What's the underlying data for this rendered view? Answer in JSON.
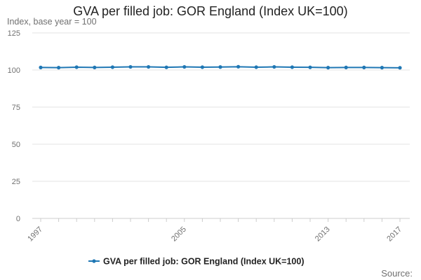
{
  "chart_data": {
    "type": "line",
    "title": "GVA per filled job: GOR England (Index UK=100)",
    "ylabel": "Index, base year = 100",
    "xlabel": "",
    "x": [
      1997,
      1998,
      1999,
      2000,
      2001,
      2002,
      2003,
      2004,
      2005,
      2006,
      2007,
      2008,
      2009,
      2010,
      2011,
      2012,
      2013,
      2014,
      2015,
      2016,
      2017
    ],
    "x_tick_labels": [
      "1997",
      "2005",
      "2013",
      "2017"
    ],
    "y_ticks": [
      0,
      25,
      50,
      75,
      100,
      125
    ],
    "ylim": [
      0,
      125
    ],
    "grid": true,
    "legend_position": "bottom",
    "series": [
      {
        "name": "GVA per filled job: GOR England (Index UK=100)",
        "color": "#1f77b4",
        "values": [
          101.7,
          101.6,
          101.9,
          101.7,
          101.9,
          102.1,
          102.1,
          101.8,
          102.1,
          101.9,
          102.0,
          102.2,
          101.9,
          102.1,
          101.9,
          101.8,
          101.6,
          101.7,
          101.7,
          101.6,
          101.5
        ]
      }
    ]
  },
  "source_label": "Source:"
}
